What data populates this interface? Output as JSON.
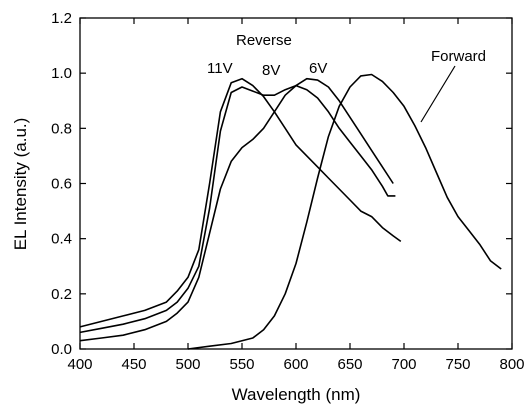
{
  "chart_data": {
    "type": "line",
    "title": "",
    "xlabel": "Wavelength (nm)",
    "ylabel": "EL Intensity (a.u.)",
    "xlim": [
      400,
      800
    ],
    "ylim": [
      0.0,
      1.2
    ],
    "grid": false,
    "xticks": [
      "400",
      "450",
      "500",
      "550",
      "600",
      "650",
      "700",
      "750",
      "800"
    ],
    "yticks": [
      "0.0",
      "0.2",
      "0.4",
      "0.6",
      "0.8",
      "1.0",
      "1.2"
    ],
    "annotations": [
      {
        "id": "reverse",
        "text": "Reverse"
      },
      {
        "id": "v11",
        "text": "11V"
      },
      {
        "id": "v8",
        "text": "8V"
      },
      {
        "id": "v6",
        "text": "6V"
      },
      {
        "id": "forward",
        "text": "Forward"
      }
    ],
    "series": [
      {
        "id": "rev-11v",
        "x": [
          400,
          420,
          440,
          460,
          480,
          490,
          500,
          510,
          520,
          530,
          540,
          550,
          560,
          570,
          580,
          590,
          600,
          610,
          620,
          630,
          640,
          650,
          660,
          670,
          680,
          690,
          697
        ],
        "y": [
          0.08,
          0.1,
          0.12,
          0.14,
          0.17,
          0.21,
          0.26,
          0.36,
          0.6,
          0.86,
          0.965,
          0.98,
          0.955,
          0.915,
          0.86,
          0.8,
          0.74,
          0.7,
          0.66,
          0.62,
          0.58,
          0.54,
          0.5,
          0.48,
          0.44,
          0.41,
          0.39
        ]
      },
      {
        "id": "rev-8v",
        "x": [
          400,
          420,
          440,
          460,
          480,
          490,
          500,
          510,
          520,
          530,
          540,
          550,
          560,
          570,
          580,
          590,
          600,
          610,
          620,
          630,
          640,
          650,
          660,
          670,
          680,
          685,
          692
        ],
        "y": [
          0.06,
          0.075,
          0.09,
          0.11,
          0.14,
          0.17,
          0.22,
          0.3,
          0.51,
          0.79,
          0.93,
          0.95,
          0.935,
          0.92,
          0.92,
          0.94,
          0.955,
          0.94,
          0.91,
          0.86,
          0.8,
          0.75,
          0.7,
          0.65,
          0.59,
          0.555,
          0.555
        ]
      },
      {
        "id": "rev-6v",
        "x": [
          400,
          420,
          440,
          460,
          480,
          490,
          500,
          510,
          520,
          530,
          540,
          550,
          560,
          570,
          580,
          590,
          600,
          610,
          620,
          630,
          640,
          650,
          660,
          670,
          680,
          690
        ],
        "y": [
          0.03,
          0.04,
          0.05,
          0.07,
          0.1,
          0.13,
          0.17,
          0.26,
          0.42,
          0.58,
          0.68,
          0.73,
          0.76,
          0.8,
          0.86,
          0.92,
          0.955,
          0.98,
          0.975,
          0.95,
          0.9,
          0.84,
          0.78,
          0.72,
          0.66,
          0.6
        ]
      },
      {
        "id": "forward",
        "x": [
          500,
          520,
          540,
          560,
          570,
          580,
          590,
          600,
          610,
          620,
          630,
          640,
          650,
          660,
          670,
          680,
          690,
          700,
          710,
          720,
          730,
          740,
          750,
          760,
          770,
          780,
          790
        ],
        "y": [
          0.0,
          0.01,
          0.02,
          0.04,
          0.07,
          0.12,
          0.2,
          0.31,
          0.46,
          0.62,
          0.77,
          0.88,
          0.95,
          0.99,
          0.995,
          0.97,
          0.93,
          0.88,
          0.81,
          0.73,
          0.64,
          0.55,
          0.48,
          0.43,
          0.38,
          0.32,
          0.29
        ]
      }
    ]
  }
}
